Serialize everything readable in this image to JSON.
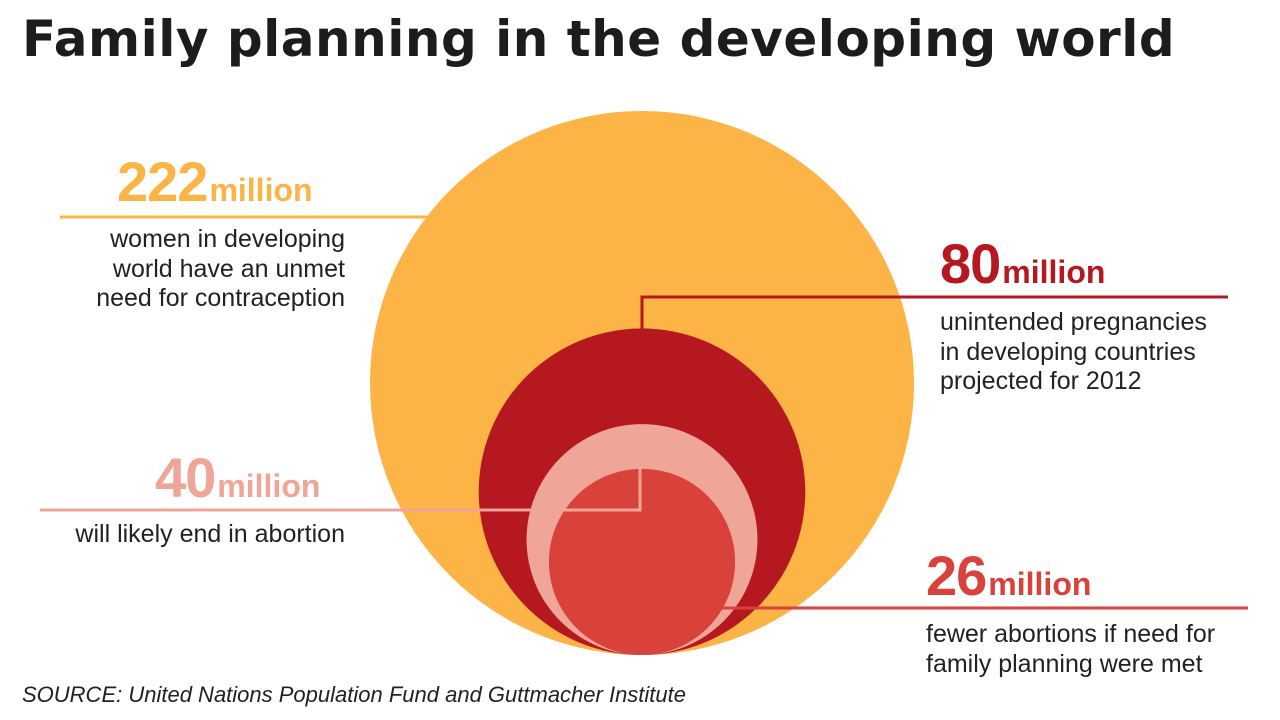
{
  "title": "Family planning in the developing world",
  "source": "SOURCE: United Nations Population Fund and Guttmacher Institute",
  "colors": {
    "orange": "#fbb445",
    "dark_red": "#b5181f",
    "pink": "#efa597",
    "red": "#d9423a",
    "title": "#1c1c1c"
  },
  "chart_data": {
    "type": "nested-circle",
    "unit": "million",
    "items": [
      {
        "key": "unmet",
        "value": 222,
        "value_label": "222",
        "unit_label": "million",
        "description": "women in developing\nworld have an unmet\nneed for contraception",
        "color": "#fbb445"
      },
      {
        "key": "unintended",
        "value": 80,
        "value_label": "80",
        "unit_label": "million",
        "description": "unintended pregnancies\nin developing countries\nprojected for 2012",
        "color": "#b5181f"
      },
      {
        "key": "abortion",
        "value": 40,
        "value_label": "40",
        "unit_label": "million",
        "description": "will likely end in abortion",
        "color": "#efa597"
      },
      {
        "key": "fewer",
        "value": 26,
        "value_label": "26",
        "unit_label": "million",
        "description": "fewer abortions if need for\nfamily planning were met",
        "color": "#d9423a"
      }
    ]
  }
}
